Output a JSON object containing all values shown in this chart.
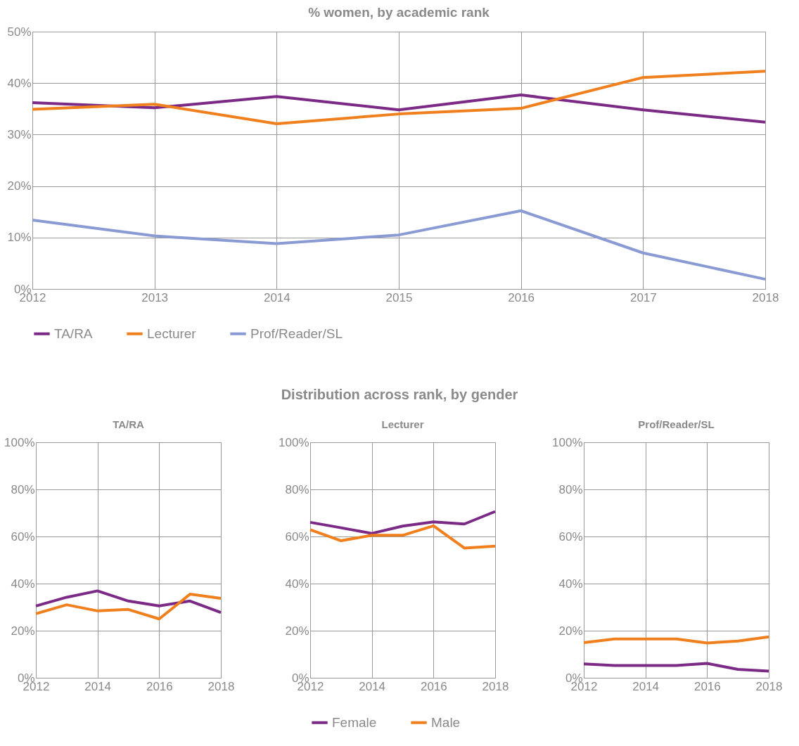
{
  "chart_data": [
    {
      "type": "line",
      "title": "% women, by academic rank",
      "x": [
        2012,
        2013,
        2014,
        2015,
        2016,
        2017,
        2018
      ],
      "series": [
        {
          "name": "TA/RA",
          "color": "#7b2a85",
          "values": [
            36.2,
            35.2,
            37.4,
            34.8,
            37.7,
            34.8,
            32.4
          ]
        },
        {
          "name": "Lecturer",
          "color": "#f07f1e",
          "values": [
            34.9,
            35.9,
            32.1,
            34.0,
            35.1,
            41.1,
            42.3
          ]
        },
        {
          "name": "Prof/Reader/SL",
          "color": "#8a9bd4",
          "values": [
            13.4,
            10.3,
            8.8,
            10.5,
            15.2,
            7.0,
            1.9
          ]
        }
      ],
      "xlim": [
        2012,
        2018
      ],
      "xticks": [
        2012,
        2013,
        2014,
        2015,
        2016,
        2017,
        2018
      ],
      "ylim": [
        0,
        50
      ],
      "yticks": [
        {
          "value": 0,
          "label": "0%"
        },
        {
          "value": 10,
          "label": "10%"
        },
        {
          "value": 20,
          "label": "20%"
        },
        {
          "value": 30,
          "label": "30%"
        },
        {
          "value": 40,
          "label": "40%"
        },
        {
          "value": 50,
          "label": "50%"
        }
      ],
      "grid": true,
      "legend": "bottom",
      "marker": "none"
    },
    {
      "type": "line",
      "title": "TA/RA",
      "annotations": [
        "Distribution across rank, by gender"
      ],
      "x": [
        2012,
        2013,
        2014,
        2015,
        2016,
        2017,
        2018
      ],
      "series": [
        {
          "color": "#7b2a85",
          "values": [
            30.5,
            34.2,
            36.9,
            32.6,
            30.5,
            32.6,
            27.7
          ]
        },
        {
          "color": "#f07f1e",
          "values": [
            27.2,
            31.0,
            28.4,
            29.0,
            25.0,
            35.5,
            33.7
          ]
        }
      ],
      "xlim": [
        2012,
        2018
      ],
      "xticks": [
        2012,
        2014,
        2016,
        2018
      ],
      "ylim": [
        0,
        100
      ],
      "yticks": [
        {
          "value": 0,
          "label": "0%"
        },
        {
          "value": 20,
          "label": "20%"
        },
        {
          "value": 40,
          "label": "40%"
        },
        {
          "value": 60,
          "label": "60%"
        },
        {
          "value": 80,
          "label": "80%"
        },
        {
          "value": 100,
          "label": "100%"
        }
      ],
      "grid": true,
      "marker": "none"
    },
    {
      "type": "line",
      "title": "Lecturer",
      "x": [
        2012,
        2013,
        2014,
        2015,
        2016,
        2017,
        2018
      ],
      "series": [
        {
          "name": "Female",
          "color": "#7b2a85",
          "values": [
            66.0,
            63.7,
            61.3,
            64.4,
            66.2,
            65.3,
            70.6
          ]
        },
        {
          "name": "Male",
          "color": "#f07f1e",
          "values": [
            62.9,
            58.2,
            60.5,
            60.5,
            64.5,
            55.1,
            55.9
          ]
        }
      ],
      "xlim": [
        2012,
        2018
      ],
      "xticks": [
        2012,
        2014,
        2016,
        2018
      ],
      "ylim": [
        0,
        100
      ],
      "yticks": [
        {
          "value": 0,
          "label": "0%"
        },
        {
          "value": 20,
          "label": "20%"
        },
        {
          "value": 40,
          "label": "40%"
        },
        {
          "value": 60,
          "label": "60%"
        },
        {
          "value": 80,
          "label": "80%"
        },
        {
          "value": 100,
          "label": "100%"
        }
      ],
      "grid": true,
      "legend": "bottom",
      "marker": "none"
    },
    {
      "type": "line",
      "title": "Prof/Reader/SL",
      "x": [
        2012,
        2013,
        2014,
        2015,
        2016,
        2017,
        2018
      ],
      "series": [
        {
          "color": "#7b2a85",
          "values": [
            5.9,
            5.2,
            5.2,
            5.2,
            6.1,
            3.6,
            2.8
          ]
        },
        {
          "color": "#f07f1e",
          "values": [
            14.9,
            16.5,
            16.5,
            16.5,
            14.8,
            15.6,
            17.4
          ]
        }
      ],
      "xlim": [
        2012,
        2018
      ],
      "xticks": [
        2012,
        2014,
        2016,
        2018
      ],
      "ylim": [
        0,
        100
      ],
      "yticks": [
        {
          "value": 0,
          "label": "0%"
        },
        {
          "value": 20,
          "label": "20%"
        },
        {
          "value": 40,
          "label": "40%"
        },
        {
          "value": 60,
          "label": "60%"
        },
        {
          "value": 80,
          "label": "80%"
        },
        {
          "value": 100,
          "label": "100%"
        }
      ],
      "grid": true,
      "marker": "none"
    }
  ]
}
